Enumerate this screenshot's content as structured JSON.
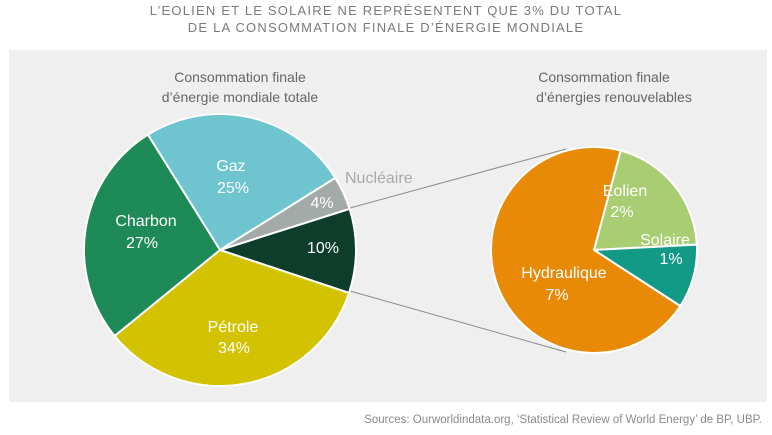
{
  "title": {
    "line1": "L’EOLIEN ET LE SOLAIRE NE REPRÉSENTENT QUE 3% DU TOTAL",
    "line2": "DE LA CONSOMMATION FINALE D’ÉNERGIE MONDIALE"
  },
  "source": "Sources: Ourworldindata.org, ‘Statistical Review of World Energy’ de BP, UBP.",
  "chart_data": [
    {
      "type": "pie",
      "title_line1": "Consommation finale",
      "title_line2": "d’énergie mondiale totale",
      "slices": [
        {
          "label": "Gaz",
          "value_label": "25%",
          "value": 25,
          "color": "#6ec4cf"
        },
        {
          "label": "Nucléaire",
          "value_label": "4%",
          "value": 4,
          "color": "#a3aaa8"
        },
        {
          "label": "",
          "value_label": "10%",
          "value": 10,
          "color": "#0f3d2c"
        },
        {
          "label": "Pétrole",
          "value_label": "34%",
          "value": 34,
          "color": "#d3c200"
        },
        {
          "label": "Charbon",
          "value_label": "27%",
          "value": 27,
          "color": "#1e8a57"
        }
      ]
    },
    {
      "type": "pie",
      "title_line1": "Consommation finale",
      "title_line2": "d’énergies renouvelables",
      "slices": [
        {
          "label": "Eolien",
          "value_label": "2%",
          "value": 2,
          "color": "#a9cd72"
        },
        {
          "label": "Solaire",
          "value_label": "1%",
          "value": 1,
          "color": "#139a86"
        },
        {
          "label": "Hydraulique",
          "value_label": "7%",
          "value": 7,
          "color": "#e88a06"
        }
      ]
    }
  ]
}
